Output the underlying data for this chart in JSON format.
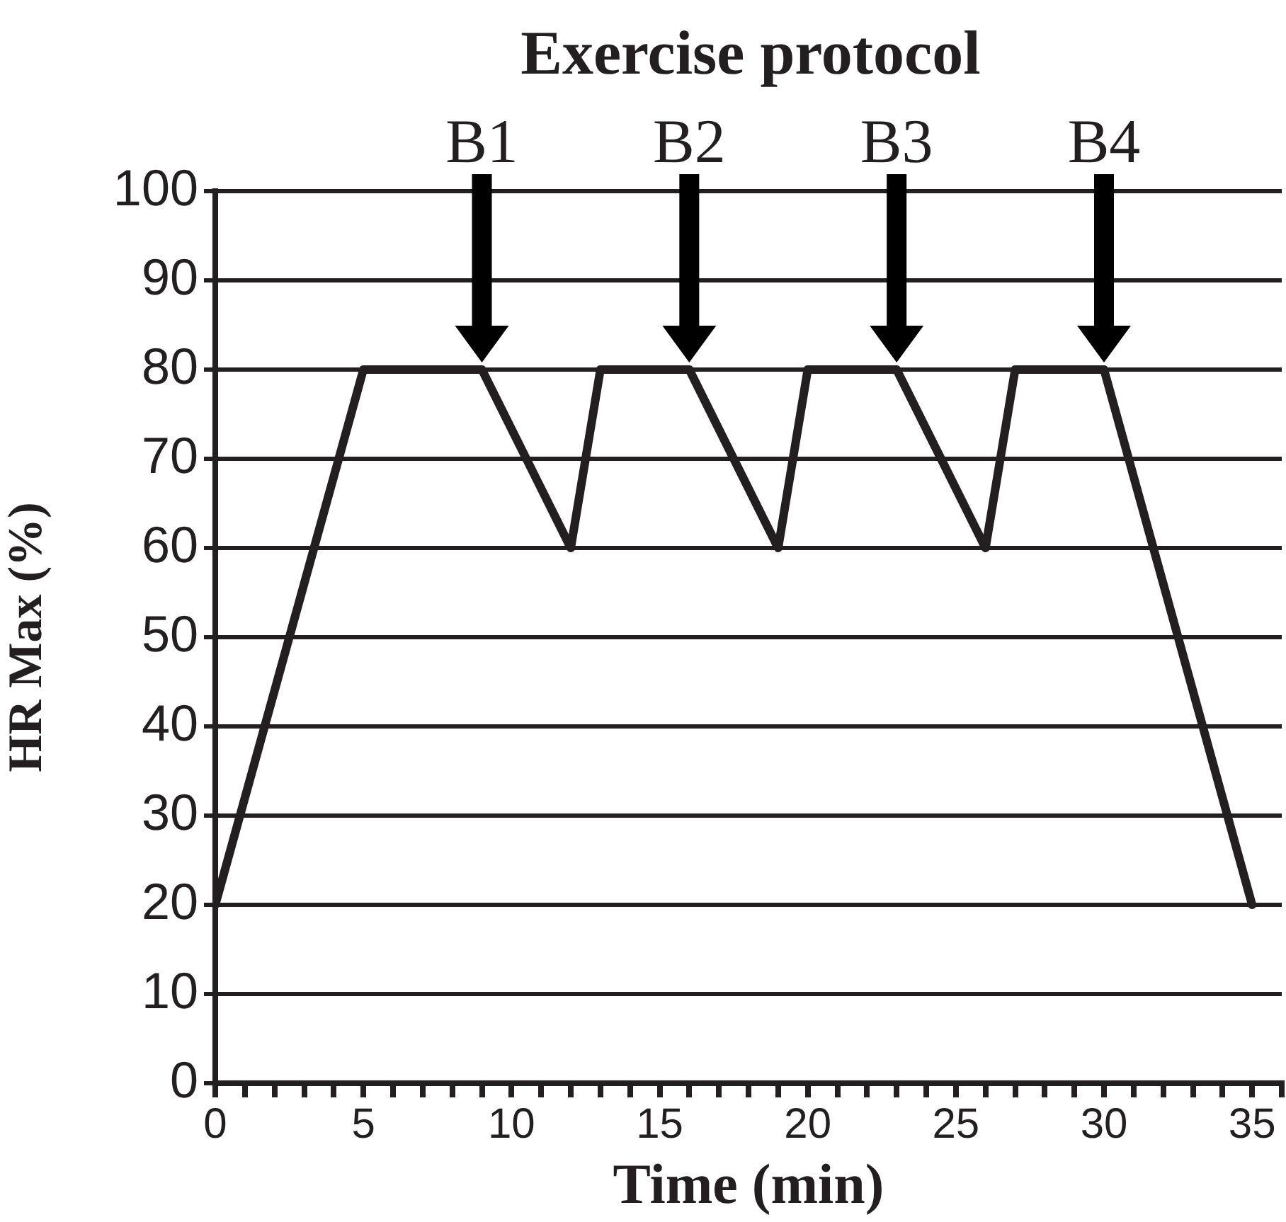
{
  "chart_data": {
    "type": "line",
    "title": "Exercise protocol",
    "xlabel": "Time (min)",
    "ylabel": "HR Max (%)",
    "x": [
      0,
      5,
      9,
      12,
      13,
      16,
      19,
      20,
      23,
      26,
      27,
      30,
      35
    ],
    "series": [
      {
        "color": "#231f20",
        "values": [
          20,
          80,
          80,
          60,
          80,
          80,
          60,
          80,
          80,
          60,
          80,
          80,
          20
        ]
      }
    ],
    "xlim": [
      0,
      36
    ],
    "xticks": [
      0,
      {
        "value": 1,
        "label": null
      },
      {
        "value": 2,
        "label": null
      },
      {
        "value": 3,
        "label": null
      },
      {
        "value": 4,
        "label": null
      },
      5,
      {
        "value": 6,
        "label": null
      },
      {
        "value": 7,
        "label": null
      },
      {
        "value": 8,
        "label": null
      },
      {
        "value": 9,
        "label": null
      },
      10,
      {
        "value": 11,
        "label": null
      },
      {
        "value": 12,
        "label": null
      },
      {
        "value": 13,
        "label": null
      },
      {
        "value": 14,
        "label": null
      },
      15,
      {
        "value": 16,
        "label": null
      },
      {
        "value": 17,
        "label": null
      },
      {
        "value": 18,
        "label": null
      },
      {
        "value": 19,
        "label": null
      },
      20,
      {
        "value": 21,
        "label": null
      },
      {
        "value": 22,
        "label": null
      },
      {
        "value": 23,
        "label": null
      },
      {
        "value": 24,
        "label": null
      },
      25,
      {
        "value": 26,
        "label": null
      },
      {
        "value": 27,
        "label": null
      },
      {
        "value": 28,
        "label": null
      },
      {
        "value": 29,
        "label": null
      },
      30,
      {
        "value": 31,
        "label": null
      },
      {
        "value": 32,
        "label": null
      },
      {
        "value": 33,
        "label": null
      },
      {
        "value": 34,
        "label": null
      },
      35,
      {
        "value": 36,
        "label": null
      }
    ],
    "ylim": [
      0,
      100
    ],
    "yticks": [
      0,
      10,
      20,
      30,
      40,
      50,
      60,
      70,
      80,
      90,
      100
    ],
    "grid": "y",
    "legend": false,
    "marker": "none",
    "line_style": "solid",
    "annotations": [
      "B1",
      "B2",
      "B3",
      "B4"
    ]
  }
}
